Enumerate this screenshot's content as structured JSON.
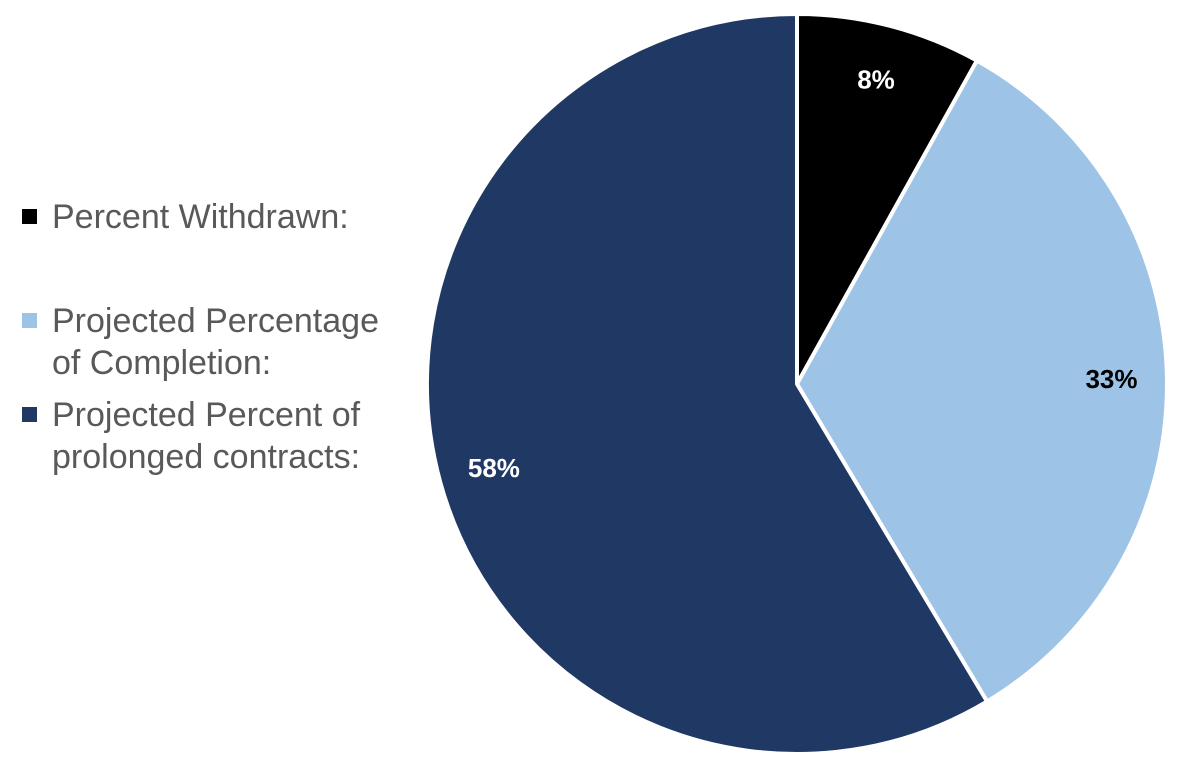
{
  "chart_data": {
    "type": "pie",
    "slices": [
      {
        "label": "Percent Withdrawn:",
        "value": 8,
        "display": "8%",
        "color": "#000000",
        "label_color": "#ffffff"
      },
      {
        "label": "Projected Percentage\nof Completion:",
        "value": 33,
        "display": "33%",
        "color": "#9dc3e6",
        "label_color": "#000000"
      },
      {
        "label": "Projected Percent of\nprolonged contracts:",
        "value": 58,
        "display": "58%",
        "color": "#203864",
        "label_color": "#ffffff"
      }
    ],
    "start": "12 o'clock",
    "direction": "clockwise",
    "legend_position": "left"
  }
}
